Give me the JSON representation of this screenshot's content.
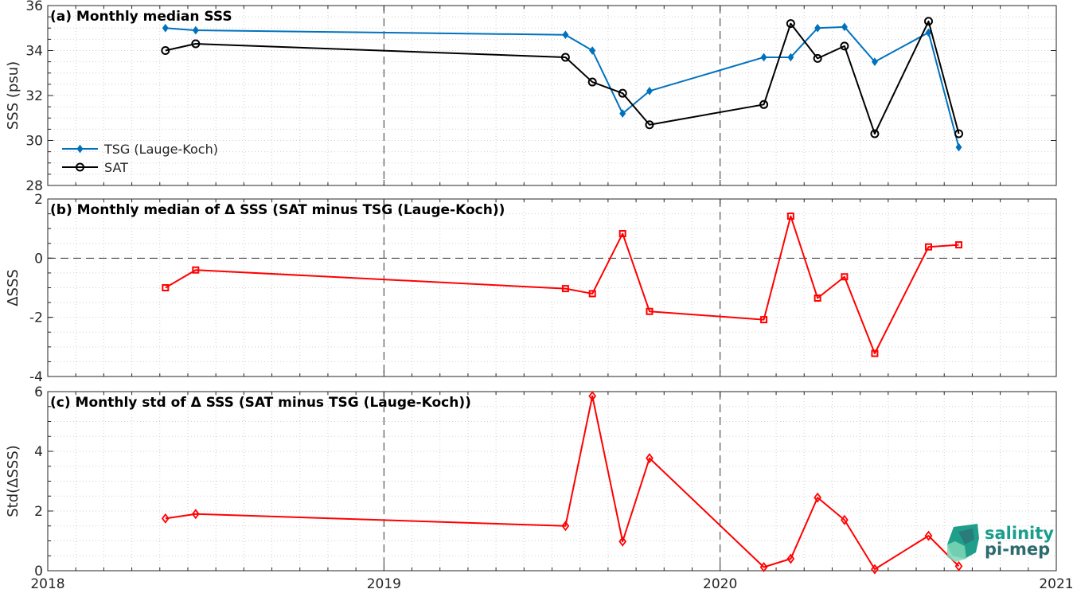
{
  "chart_data": [
    {
      "type": "line",
      "title": "(a) Monthly median SSS",
      "ylabel": "SSS (psu)",
      "xlim": [
        "2018",
        "2021"
      ],
      "ylim": [
        28,
        36
      ],
      "yticks": [
        28,
        30,
        32,
        34,
        36
      ],
      "grid": true,
      "legend_position": "bottom-left",
      "series": [
        {
          "name": "TSG (Lauge-Koch)",
          "color": "#0072BD",
          "marker": "diamond",
          "x": [
            2018.35,
            2018.44,
            2019.54,
            2019.62,
            2019.71,
            2019.79,
            2020.13,
            2020.21,
            2020.29,
            2020.37,
            2020.46,
            2020.62,
            2020.71
          ],
          "values": [
            35.0,
            34.9,
            34.7,
            34.0,
            31.2,
            32.2,
            33.7,
            33.7,
            35.0,
            35.05,
            33.5,
            34.8,
            29.7
          ]
        },
        {
          "name": "SAT",
          "color": "#000000",
          "marker": "circle",
          "x": [
            2018.35,
            2018.44,
            2019.54,
            2019.62,
            2019.71,
            2019.79,
            2020.13,
            2020.21,
            2020.29,
            2020.37,
            2020.46,
            2020.62,
            2020.71
          ],
          "values": [
            34.0,
            34.3,
            33.7,
            32.6,
            32.1,
            30.7,
            31.6,
            35.2,
            33.65,
            34.2,
            30.3,
            35.3,
            30.3
          ]
        }
      ]
    },
    {
      "type": "line",
      "title": "(b) Monthly median of Δ SSS (SAT minus TSG (Lauge-Koch))",
      "ylabel": "ΔSSS",
      "xlim": [
        "2018",
        "2021"
      ],
      "ylim": [
        -4,
        2
      ],
      "yticks": [
        -4,
        -2,
        0,
        2
      ],
      "grid": true,
      "reference_line": 0,
      "series": [
        {
          "color": "#FF0000",
          "marker": "square",
          "x": [
            2018.35,
            2018.44,
            2019.54,
            2019.62,
            2019.71,
            2019.79,
            2020.13,
            2020.21,
            2020.29,
            2020.37,
            2020.46,
            2020.62,
            2020.71
          ],
          "values": [
            -1.0,
            -0.4,
            -1.03,
            -1.2,
            0.83,
            -1.8,
            -2.08,
            1.42,
            -1.35,
            -0.63,
            -3.22,
            0.38,
            0.45
          ]
        }
      ]
    },
    {
      "type": "line",
      "title": "(c) Monthly std of Δ SSS (SAT minus TSG (Lauge-Koch))",
      "ylabel": "Std(ΔSSS)",
      "xlim": [
        "2018",
        "2021"
      ],
      "ylim": [
        0,
        6
      ],
      "yticks": [
        0,
        2,
        4,
        6
      ],
      "xticks": [
        "2018",
        "2019",
        "2020",
        "2021"
      ],
      "grid": true,
      "series": [
        {
          "color": "#FF0000",
          "marker": "diamond",
          "x": [
            2018.35,
            2018.44,
            2019.54,
            2019.62,
            2019.71,
            2019.79,
            2020.13,
            2020.21,
            2020.29,
            2020.37,
            2020.46,
            2020.62,
            2020.71
          ],
          "values": [
            1.75,
            1.9,
            1.5,
            5.85,
            0.98,
            3.77,
            0.12,
            0.4,
            2.45,
            1.7,
            0.05,
            1.17,
            0.15
          ]
        }
      ]
    }
  ],
  "logo": {
    "line1": "salinity",
    "line2": "pi-mep"
  }
}
